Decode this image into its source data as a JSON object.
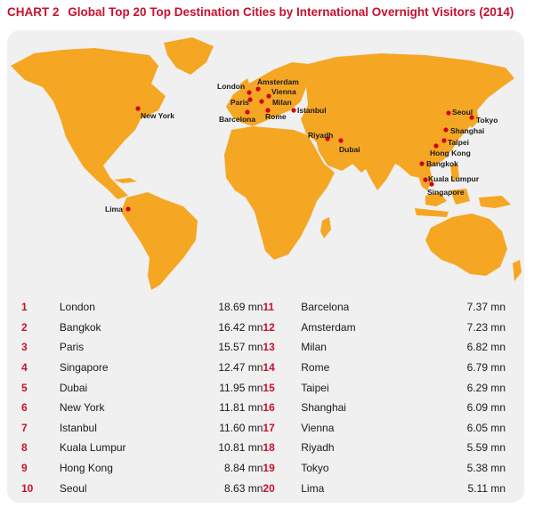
{
  "header": {
    "tag": "CHART 2",
    "title": "Global Top 20 Top Destination Cities by International Overnight Visitors (2014)"
  },
  "colors": {
    "land": "#f5a623",
    "marker": "#d0021b",
    "accent": "#c8102e",
    "panel": "#f0f0f0"
  },
  "map": {
    "cities": [
      {
        "name": "London"
      },
      {
        "name": "Amsterdam"
      },
      {
        "name": "Vienna"
      },
      {
        "name": "Paris"
      },
      {
        "name": "Milan"
      },
      {
        "name": "Barcelona"
      },
      {
        "name": "Rome"
      },
      {
        "name": "Istanbul"
      },
      {
        "name": "New York"
      },
      {
        "name": "Riyadh"
      },
      {
        "name": "Dubai"
      },
      {
        "name": "Seoul"
      },
      {
        "name": "Tokyo"
      },
      {
        "name": "Shanghai"
      },
      {
        "name": "Taipei"
      },
      {
        "name": "Hong Kong"
      },
      {
        "name": "Bangkok"
      },
      {
        "name": "Kuala Lumpur"
      },
      {
        "name": "Singapore"
      },
      {
        "name": "Lima"
      }
    ]
  },
  "rankings": [
    {
      "rank": "1",
      "city": "London",
      "value": "18.69 mn"
    },
    {
      "rank": "2",
      "city": "Bangkok",
      "value": "16.42 mn"
    },
    {
      "rank": "3",
      "city": "Paris",
      "value": "15.57 mn"
    },
    {
      "rank": "4",
      "city": "Singapore",
      "value": "12.47 mn"
    },
    {
      "rank": "5",
      "city": "Dubai",
      "value": "11.95 mn"
    },
    {
      "rank": "6",
      "city": "New York",
      "value": "11.81 mn"
    },
    {
      "rank": "7",
      "city": "Istanbul",
      "value": "11.60 mn"
    },
    {
      "rank": "8",
      "city": "Kuala Lumpur",
      "value": "10.81 mn"
    },
    {
      "rank": "9",
      "city": "Hong Kong",
      "value": "8.84 mn"
    },
    {
      "rank": "10",
      "city": "Seoul",
      "value": "8.63 mn"
    },
    {
      "rank": "11",
      "city": "Barcelona",
      "value": "7.37 mn"
    },
    {
      "rank": "12",
      "city": "Amsterdam",
      "value": "7.23 mn"
    },
    {
      "rank": "13",
      "city": "Milan",
      "value": "6.82 mn"
    },
    {
      "rank": "14",
      "city": "Rome",
      "value": "6.79 mn"
    },
    {
      "rank": "15",
      "city": "Taipei",
      "value": "6.29 mn"
    },
    {
      "rank": "16",
      "city": "Shanghai",
      "value": "6.09 mn"
    },
    {
      "rank": "17",
      "city": "Vienna",
      "value": "6.05 mn"
    },
    {
      "rank": "18",
      "city": "Riyadh",
      "value": "5.59 mn"
    },
    {
      "rank": "19",
      "city": "Tokyo",
      "value": "5.38 mn"
    },
    {
      "rank": "20",
      "city": "Lima",
      "value": "5.11 mn"
    }
  ]
}
